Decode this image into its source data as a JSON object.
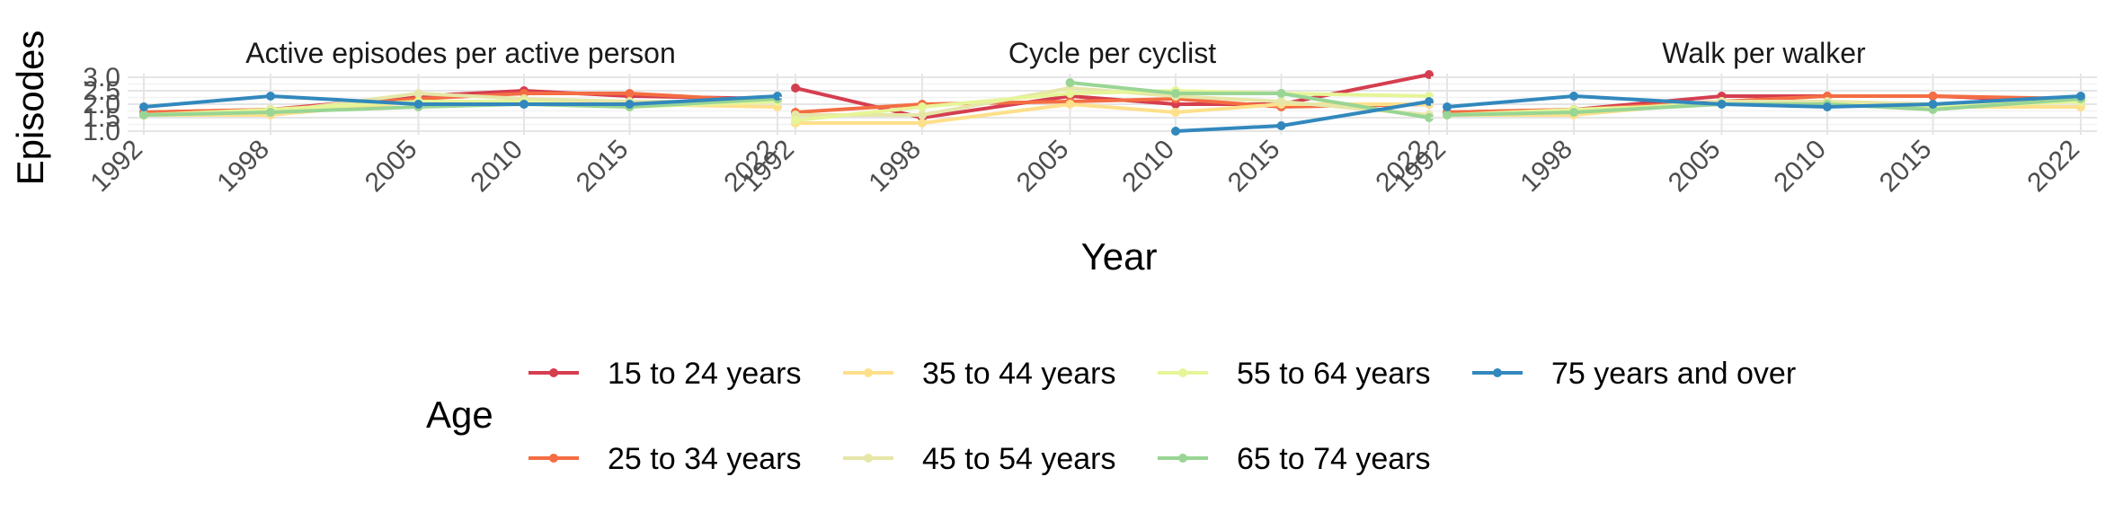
{
  "chart_data": {
    "type": "line",
    "xlabel": "Year",
    "ylabel": "Episodes",
    "x": [
      1992,
      1998,
      2005,
      2010,
      2015,
      2022
    ],
    "xticks": [
      "1992",
      "1998",
      "2005",
      "2010",
      "2015",
      "2022"
    ],
    "yticks": [
      "1.0",
      "1.5",
      "2.0",
      "2.5",
      "3.0"
    ],
    "ylim": [
      1.0,
      3.0
    ],
    "grid": true,
    "legend": {
      "title": "Age",
      "placement": "bottom",
      "items": [
        {
          "name": "15 to 24 years",
          "color": "#d53e4f"
        },
        {
          "name": "35 to 44 years",
          "color": "#fee08b"
        },
        {
          "name": "55 to 64 years",
          "color": "#e6f598"
        },
        {
          "name": "75 years and over",
          "color": "#3288bd"
        },
        {
          "name": "25 to 34 years",
          "color": "#f46d43"
        },
        {
          "name": "45 to 54 years",
          "color": "#e6e6a8"
        },
        {
          "name": "65 to 74 years",
          "color": "#99d594"
        }
      ]
    },
    "panels": [
      {
        "title": "Active episodes per active person",
        "series": [
          {
            "name": "15 to 24 years",
            "color": "#d53e4f",
            "values": [
              1.7,
              1.8,
              2.3,
              2.5,
              2.3,
              2.2
            ]
          },
          {
            "name": "25 to 34 years",
            "color": "#f46d43",
            "values": [
              1.7,
              1.8,
              2.2,
              2.4,
              2.4,
              2.1
            ]
          },
          {
            "name": "35 to 44 years",
            "color": "#fee08b",
            "values": [
              1.6,
              1.6,
              2.1,
              2.1,
              2.0,
              1.9
            ]
          },
          {
            "name": "45 to 54 years",
            "color": "#e6e6a8",
            "values": [
              1.6,
              1.7,
              2.4,
              2.2,
              2.1,
              2.1
            ]
          },
          {
            "name": "55 to 64 years",
            "color": "#e6f598",
            "values": [
              1.6,
              1.8,
              2.1,
              2.1,
              1.9,
              2.1
            ]
          },
          {
            "name": "65 to 74 years",
            "color": "#99d594",
            "values": [
              1.6,
              1.7,
              1.9,
              2.0,
              1.9,
              2.2
            ]
          },
          {
            "name": "75 years and over",
            "color": "#3288bd",
            "values": [
              1.9,
              2.3,
              2.0,
              2.0,
              2.0,
              2.3
            ]
          }
        ]
      },
      {
        "title": "Cycle per cyclist",
        "series": [
          {
            "name": "15 to 24 years",
            "color": "#d53e4f",
            "values": [
              2.6,
              1.5,
              2.3,
              2.0,
              2.0,
              3.1
            ]
          },
          {
            "name": "25 to 34 years",
            "color": "#f46d43",
            "values": [
              1.7,
              2.0,
              2.1,
              2.2,
              1.9,
              2.0
            ]
          },
          {
            "name": "35 to 44 years",
            "color": "#fee08b",
            "values": [
              1.3,
              1.3,
              2.0,
              1.7,
              2.0,
              2.0
            ]
          },
          {
            "name": "45 to 54 years",
            "color": "#e6e6a8",
            "values": [
              1.6,
              1.6,
              2.6,
              2.3,
              2.1,
              1.6
            ]
          },
          {
            "name": "55 to 64 years",
            "color": "#e6f598",
            "values": [
              1.4,
              1.9,
              2.4,
              2.5,
              2.4,
              2.3
            ]
          },
          {
            "name": "65 to 74 years",
            "color": "#99d594",
            "values": [
              null,
              null,
              2.8,
              2.4,
              2.4,
              1.5
            ]
          },
          {
            "name": "75 years and over",
            "color": "#3288bd",
            "values": [
              null,
              null,
              null,
              1.0,
              1.2,
              2.1
            ]
          }
        ]
      },
      {
        "title": "Walk per walker",
        "series": [
          {
            "name": "15 to 24 years",
            "color": "#d53e4f",
            "values": [
              1.7,
              1.8,
              2.3,
              2.3,
              2.3,
              2.1
            ]
          },
          {
            "name": "25 to 34 years",
            "color": "#f46d43",
            "values": [
              1.7,
              1.8,
              2.1,
              2.3,
              2.3,
              2.2
            ]
          },
          {
            "name": "35 to 44 years",
            "color": "#fee08b",
            "values": [
              1.6,
              1.6,
              2.1,
              2.0,
              1.9,
              1.9
            ]
          },
          {
            "name": "45 to 54 years",
            "color": "#e6e6a8",
            "values": [
              1.6,
              1.7,
              2.1,
              2.1,
              2.0,
              2.1
            ]
          },
          {
            "name": "55 to 64 years",
            "color": "#e6f598",
            "values": [
              1.6,
              1.8,
              2.0,
              2.0,
              1.9,
              2.1
            ]
          },
          {
            "name": "65 to 74 years",
            "color": "#99d594",
            "values": [
              1.6,
              1.7,
              2.0,
              2.0,
              1.8,
              2.2
            ]
          },
          {
            "name": "75 years and over",
            "color": "#3288bd",
            "values": [
              1.9,
              2.3,
              2.0,
              1.9,
              2.0,
              2.3
            ]
          }
        ]
      }
    ]
  }
}
